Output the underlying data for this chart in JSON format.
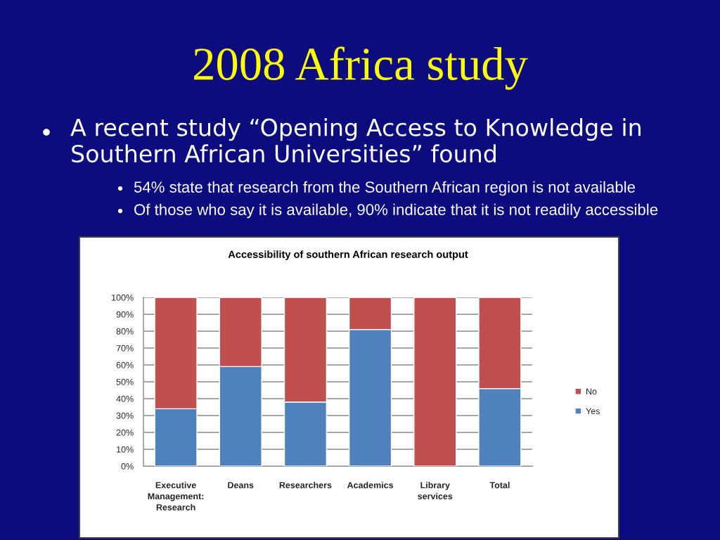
{
  "chart_data": {
    "type": "bar",
    "title": "2008 Africa study",
    "subtitle": "Accessibility of southern African research output",
    "annotations": [
      "A recent study “Opening Access to Knowledge in Southern African Universities” found",
      "54% state that research from the Southern African region is not available",
      "Of those who say it is available, 90% indicate that it is not readily accessible"
    ],
    "categories": [
      "Executive Management: Research",
      "Deans",
      "Researchers",
      "Academics",
      "Library services",
      "Total"
    ],
    "series": [
      {
        "name": "Yes",
        "color": "#4f81bd",
        "values": [
          34,
          59,
          38,
          81,
          0,
          46
        ]
      },
      {
        "name": "No",
        "color": "#c0504d",
        "values": [
          66,
          41,
          62,
          19,
          100,
          54
        ]
      }
    ],
    "stacked": true,
    "ylim": [
      0,
      100
    ],
    "yticks": [
      {
        "value": 0,
        "label": "0%"
      },
      {
        "value": 10,
        "label": "10%"
      },
      {
        "value": 20,
        "label": "20%"
      },
      {
        "value": 30,
        "label": "30%"
      },
      {
        "value": 40,
        "label": "40%"
      },
      {
        "value": 50,
        "label": "50%"
      },
      {
        "value": 60,
        "label": "60%"
      },
      {
        "value": 70,
        "label": "70%"
      },
      {
        "value": 80,
        "label": "80%"
      },
      {
        "value": 90,
        "label": "90%"
      },
      {
        "value": 100,
        "label": "100%"
      }
    ],
    "grid": "y",
    "legend": "right"
  }
}
